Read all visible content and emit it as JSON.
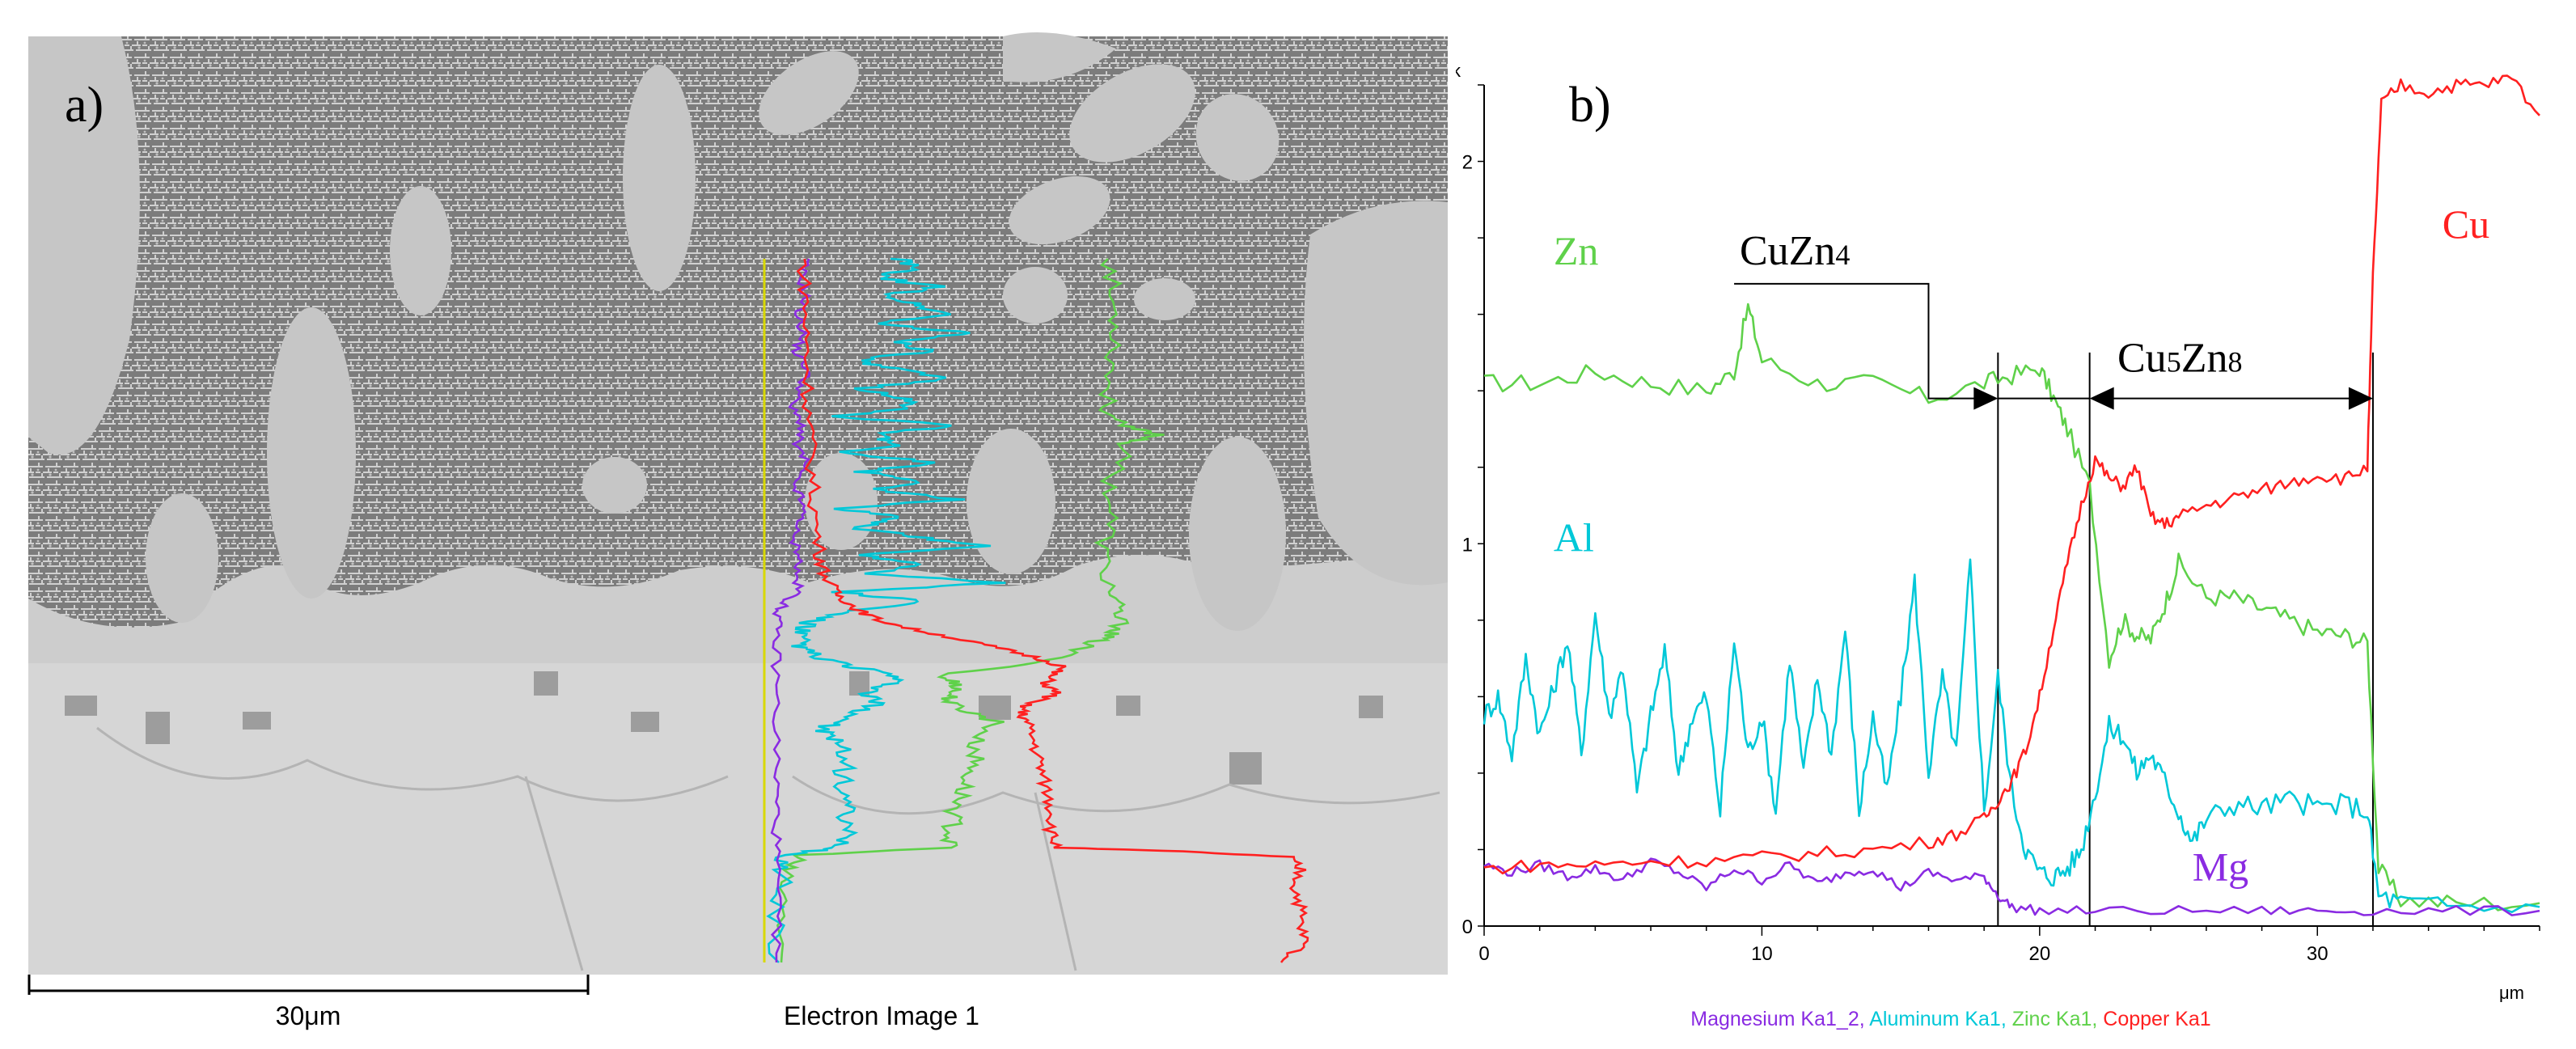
{
  "panel_a": {
    "label": "a)",
    "scale_bar_label": "30μm",
    "caption": "Electron Image 1",
    "colors": {
      "background": "#d9d9d9",
      "eutectic": "#7c7c7c",
      "dendrite": "#c9c9c9",
      "substrate": "#cfcfcf",
      "mg": "#8a2be2",
      "al": "#00c8d8",
      "zn": "#5fd14a",
      "cu": "#ff2020",
      "scan_line": "#d8d800"
    }
  },
  "chart_data": {
    "type": "line",
    "label": "b)",
    "title": "",
    "xlabel": "μm",
    "ylabel": "k",
    "xlim": [
      0,
      38
    ],
    "ylim": [
      0,
      2.2
    ],
    "x_ticks": [
      0,
      10,
      20,
      30
    ],
    "y_ticks": [
      0,
      1,
      2
    ],
    "grid": false,
    "legend_text": [
      {
        "text": "Magnesium Ka1_2, ",
        "color": "#8a2be2"
      },
      {
        "text": "Aluminum Ka1, ",
        "color": "#00c8d8"
      },
      {
        "text": "Zinc Ka1, ",
        "color": "#5fd14a"
      },
      {
        "text": "Copper Ka1",
        "color": "#ff2020"
      }
    ],
    "series": [
      {
        "name": "Zn",
        "color": "#5fd14a",
        "x": [
          0,
          2,
          4,
          6,
          8,
          9,
          9.5,
          10,
          12,
          14,
          16,
          18,
          19,
          20,
          20.5,
          21,
          21.8,
          22.5,
          23,
          23.5,
          24,
          24.5,
          25,
          26,
          27,
          28,
          29,
          30,
          31,
          31.8,
          32.2,
          33,
          35,
          38
        ],
        "y": [
          1.42,
          1.42,
          1.45,
          1.42,
          1.4,
          1.45,
          1.62,
          1.48,
          1.42,
          1.42,
          1.38,
          1.42,
          1.44,
          1.46,
          1.38,
          1.3,
          1.15,
          0.7,
          0.8,
          0.76,
          0.75,
          0.84,
          0.95,
          0.86,
          0.86,
          0.83,
          0.8,
          0.77,
          0.76,
          0.74,
          0.15,
          0.07,
          0.06,
          0.06
        ]
      },
      {
        "name": "Al",
        "color": "#00c8d8",
        "x": [
          0,
          0.5,
          1,
          1.5,
          2,
          2.5,
          3,
          3.5,
          4,
          4.5,
          5,
          5.5,
          6,
          6.5,
          7,
          7.5,
          8,
          8.5,
          9,
          9.5,
          10,
          10.5,
          11,
          11.5,
          12,
          12.5,
          13,
          13.5,
          14,
          14.5,
          15,
          15.5,
          16,
          16.5,
          17,
          17.5,
          18,
          18.5,
          19,
          19.5,
          20,
          20.5,
          21,
          21.5,
          22,
          22.5,
          23,
          23.5,
          24,
          24.5,
          25,
          25.5,
          26,
          27,
          28,
          29,
          30,
          31,
          31.8,
          32.2,
          33,
          35,
          38
        ],
        "y": [
          0.55,
          0.6,
          0.45,
          0.7,
          0.5,
          0.62,
          0.75,
          0.45,
          0.82,
          0.55,
          0.68,
          0.35,
          0.55,
          0.72,
          0.4,
          0.55,
          0.6,
          0.3,
          0.75,
          0.45,
          0.55,
          0.3,
          0.7,
          0.4,
          0.65,
          0.45,
          0.78,
          0.3,
          0.55,
          0.35,
          0.6,
          0.9,
          0.4,
          0.65,
          0.45,
          0.95,
          0.3,
          0.65,
          0.35,
          0.2,
          0.14,
          0.13,
          0.15,
          0.2,
          0.35,
          0.52,
          0.5,
          0.4,
          0.45,
          0.38,
          0.3,
          0.22,
          0.28,
          0.32,
          0.31,
          0.33,
          0.31,
          0.32,
          0.3,
          0.08,
          0.06,
          0.05,
          0.05
        ]
      },
      {
        "name": "Mg",
        "color": "#8a2be2",
        "x": [
          0,
          1,
          2,
          3,
          4,
          5,
          6,
          7,
          8,
          9,
          10,
          11,
          12,
          13,
          14,
          15,
          16,
          17,
          18,
          18.5,
          19,
          20,
          22,
          25,
          28,
          30,
          32,
          35,
          38
        ],
        "y": [
          0.16,
          0.14,
          0.16,
          0.13,
          0.15,
          0.12,
          0.17,
          0.14,
          0.1,
          0.15,
          0.12,
          0.16,
          0.11,
          0.14,
          0.15,
          0.1,
          0.14,
          0.12,
          0.13,
          0.08,
          0.05,
          0.04,
          0.04,
          0.04,
          0.04,
          0.04,
          0.04,
          0.04,
          0.04
        ]
      },
      {
        "name": "Cu",
        "color": "#ff2020",
        "x": [
          0,
          2,
          4,
          6,
          8,
          10,
          12,
          14,
          16,
          17,
          18,
          18.5,
          19,
          19.5,
          20,
          20.5,
          21,
          21.5,
          22,
          22.5,
          23,
          23.5,
          24,
          24.5,
          25,
          26,
          27,
          28,
          29,
          30,
          31,
          31.8,
          32,
          32.3,
          33,
          34,
          35,
          36,
          37,
          38
        ],
        "y": [
          0.15,
          0.16,
          0.16,
          0.17,
          0.17,
          0.18,
          0.19,
          0.2,
          0.22,
          0.24,
          0.28,
          0.33,
          0.38,
          0.46,
          0.6,
          0.78,
          0.95,
          1.1,
          1.22,
          1.17,
          1.15,
          1.2,
          1.07,
          1.05,
          1.07,
          1.1,
          1.12,
          1.14,
          1.16,
          1.18,
          1.17,
          1.2,
          1.7,
          2.15,
          2.2,
          2.18,
          2.2,
          2.2,
          2.22,
          2.12
        ]
      }
    ],
    "series_labels": [
      {
        "text": "Zn",
        "color": "#5fd14a",
        "x": 2.5,
        "y": 1.73
      },
      {
        "text": "Al",
        "color": "#00c8d8",
        "x": 2.5,
        "y": 0.98
      },
      {
        "text": "Mg",
        "color": "#8a2be2",
        "x": 25.5,
        "y": 0.12
      },
      {
        "text": "Cu",
        "color": "#ff2020",
        "x": 34.5,
        "y": 1.8
      }
    ],
    "phase_boundaries": [
      18.5,
      21.8,
      32.0
    ],
    "phases": [
      {
        "name": "CuZn",
        "subscript": "4",
        "from": 18.5,
        "to": 21.8
      },
      {
        "name": "Cu",
        "subscript": "5",
        "name2": "Zn",
        "subscript2": "8",
        "from": 21.8,
        "to": 32.0
      }
    ]
  }
}
